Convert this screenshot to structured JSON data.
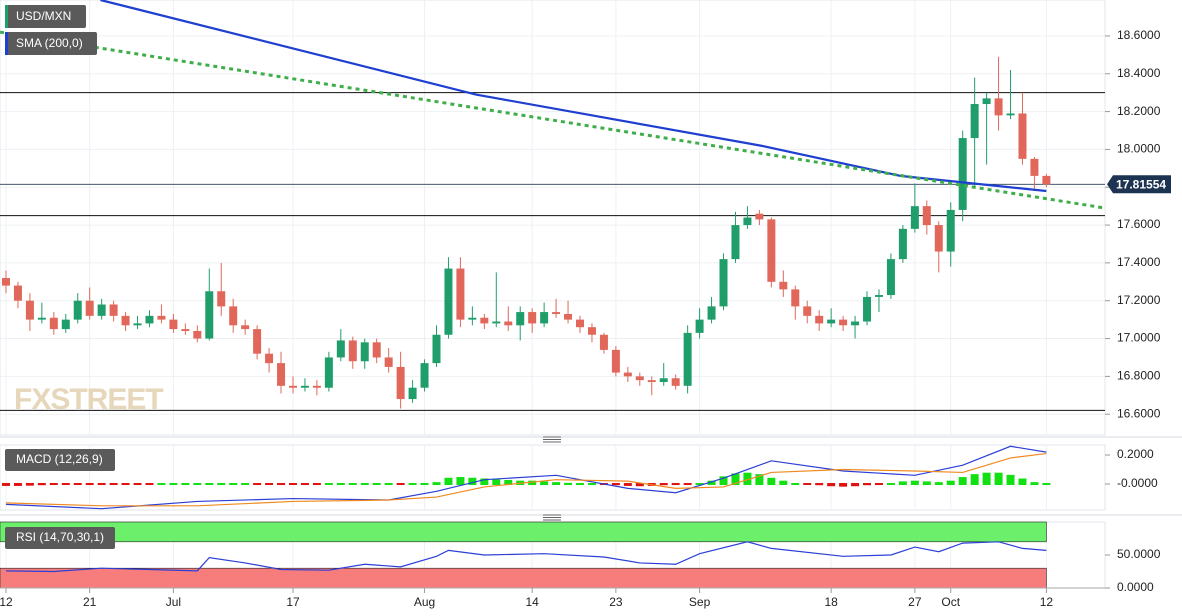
{
  "chart_data": [
    {
      "type": "candlestick",
      "title": "USD/MXN",
      "watermark": "FXSTREET",
      "xlim": [
        -0.5,
        91.9
      ],
      "ylim": [
        16.49,
        18.79
      ],
      "yticks": [
        {
          "value": 16.6,
          "label": "16.6000"
        },
        {
          "value": 16.8,
          "label": "16.8000"
        },
        {
          "value": 17.0,
          "label": "17.0000"
        },
        {
          "value": 17.2,
          "label": "17.2000"
        },
        {
          "value": 17.4,
          "label": "17.4000"
        },
        {
          "value": 17.6,
          "label": "17.6000"
        },
        {
          "value": 17.8,
          "label": "17.8000"
        },
        {
          "value": 18.0,
          "label": "18.0000"
        },
        {
          "value": 18.2,
          "label": "18.2000"
        },
        {
          "value": 18.4,
          "label": "18.4000"
        },
        {
          "value": 18.6,
          "label": "18.6000"
        }
      ],
      "grid": true,
      "up_color": "#1f9e6b",
      "down_color": "#e0675a",
      "candles": [
        [
          17.32,
          17.36,
          17.24,
          17.28
        ],
        [
          17.28,
          17.3,
          17.16,
          17.2
        ],
        [
          17.2,
          17.24,
          17.04,
          17.1
        ],
        [
          17.1,
          17.19,
          17.08,
          17.11
        ],
        [
          17.11,
          17.14,
          17.02,
          17.05
        ],
        [
          17.05,
          17.13,
          17.03,
          17.1
        ],
        [
          17.1,
          17.24,
          17.08,
          17.2
        ],
        [
          17.2,
          17.27,
          17.1,
          17.12
        ],
        [
          17.12,
          17.21,
          17.1,
          17.18
        ],
        [
          17.18,
          17.2,
          17.09,
          17.12
        ],
        [
          17.12,
          17.14,
          17.04,
          17.07
        ],
        [
          17.07,
          17.12,
          17.05,
          17.08
        ],
        [
          17.08,
          17.15,
          17.06,
          17.12
        ],
        [
          17.12,
          17.18,
          17.08,
          17.1
        ],
        [
          17.1,
          17.13,
          17.03,
          17.05
        ],
        [
          17.05,
          17.08,
          17.02,
          17.04
        ],
        [
          17.04,
          17.07,
          16.98,
          17.0
        ],
        [
          17.0,
          17.37,
          16.99,
          17.25
        ],
        [
          17.25,
          17.4,
          17.12,
          17.17
        ],
        [
          17.17,
          17.21,
          17.03,
          17.07
        ],
        [
          17.07,
          17.1,
          17.02,
          17.05
        ],
        [
          17.05,
          17.07,
          16.89,
          16.92
        ],
        [
          16.92,
          16.95,
          16.82,
          16.87
        ],
        [
          16.87,
          16.93,
          16.71,
          16.75
        ],
        [
          16.75,
          16.8,
          16.71,
          16.74
        ],
        [
          16.74,
          16.79,
          16.72,
          16.75
        ],
        [
          16.75,
          16.78,
          16.7,
          16.74
        ],
        [
          16.74,
          16.93,
          16.72,
          16.9
        ],
        [
          16.9,
          17.05,
          16.88,
          16.99
        ],
        [
          16.99,
          17.01,
          16.84,
          16.88
        ],
        [
          16.88,
          17.0,
          16.84,
          16.98
        ],
        [
          16.98,
          17.0,
          16.87,
          16.9
        ],
        [
          16.9,
          16.95,
          16.82,
          16.85
        ],
        [
          16.85,
          16.93,
          16.63,
          16.68
        ],
        [
          16.68,
          16.78,
          16.66,
          16.74
        ],
        [
          16.74,
          16.89,
          16.72,
          16.87
        ],
        [
          16.87,
          17.07,
          16.85,
          17.02
        ],
        [
          17.02,
          17.43,
          17.0,
          17.37
        ],
        [
          17.37,
          17.43,
          17.06,
          17.1
        ],
        [
          17.1,
          17.17,
          17.07,
          17.11
        ],
        [
          17.11,
          17.13,
          17.05,
          17.08
        ],
        [
          17.08,
          17.35,
          17.06,
          17.09
        ],
        [
          17.09,
          17.17,
          17.04,
          17.07
        ],
        [
          17.07,
          17.17,
          16.99,
          17.14
        ],
        [
          17.14,
          17.16,
          17.03,
          17.08
        ],
        [
          17.08,
          17.19,
          17.06,
          17.14
        ],
        [
          17.14,
          17.21,
          17.11,
          17.13
        ],
        [
          17.13,
          17.2,
          17.08,
          17.1
        ],
        [
          17.1,
          17.12,
          17.03,
          17.06
        ],
        [
          17.06,
          17.08,
          16.98,
          17.02
        ],
        [
          17.02,
          17.03,
          16.92,
          16.94
        ],
        [
          16.94,
          16.96,
          16.8,
          16.82
        ],
        [
          16.82,
          16.85,
          16.77,
          16.8
        ],
        [
          16.8,
          16.82,
          16.75,
          16.78
        ],
        [
          16.78,
          16.8,
          16.7,
          16.77
        ],
        [
          16.77,
          16.87,
          16.75,
          16.79
        ],
        [
          16.79,
          16.81,
          16.73,
          16.75
        ],
        [
          16.75,
          17.07,
          16.71,
          17.03
        ],
        [
          17.03,
          17.16,
          17.0,
          17.1
        ],
        [
          17.1,
          17.22,
          17.08,
          17.17
        ],
        [
          17.17,
          17.45,
          17.15,
          17.42
        ],
        [
          17.42,
          17.67,
          17.4,
          17.6
        ],
        [
          17.6,
          17.7,
          17.58,
          17.64
        ],
        [
          17.66,
          17.68,
          17.6,
          17.63
        ],
        [
          17.63,
          17.64,
          17.27,
          17.3
        ],
        [
          17.3,
          17.36,
          17.22,
          17.26
        ],
        [
          17.26,
          17.28,
          17.1,
          17.17
        ],
        [
          17.17,
          17.2,
          17.08,
          17.12
        ],
        [
          17.12,
          17.15,
          17.04,
          17.08
        ],
        [
          17.08,
          17.16,
          17.06,
          17.1
        ],
        [
          17.1,
          17.12,
          17.04,
          17.07
        ],
        [
          17.07,
          17.12,
          17.0,
          17.09
        ],
        [
          17.09,
          17.25,
          17.07,
          17.22
        ],
        [
          17.22,
          17.26,
          17.14,
          17.23
        ],
        [
          17.23,
          17.45,
          17.21,
          17.42
        ],
        [
          17.42,
          17.6,
          17.4,
          17.58
        ],
        [
          17.58,
          17.82,
          17.56,
          17.7
        ],
        [
          17.7,
          17.73,
          17.55,
          17.6
        ],
        [
          17.6,
          17.62,
          17.35,
          17.46
        ],
        [
          17.46,
          17.72,
          17.38,
          17.68
        ],
        [
          17.68,
          18.1,
          17.62,
          18.06
        ],
        [
          18.06,
          18.38,
          17.8,
          18.24
        ],
        [
          18.24,
          18.3,
          17.92,
          18.27
        ],
        [
          18.27,
          18.49,
          18.1,
          18.18
        ],
        [
          18.18,
          18.42,
          18.16,
          18.19
        ],
        [
          18.19,
          18.3,
          17.92,
          17.95
        ],
        [
          17.95,
          17.96,
          17.78,
          17.86
        ],
        [
          17.86,
          17.87,
          17.8,
          17.81554
        ]
      ],
      "series": [
        {
          "name": "SMA (200,0)",
          "color": "#1f3fd0",
          "style": "solid",
          "x": [
            7.9,
            39.3,
            63.1,
            74.8,
            87
          ],
          "values": [
            18.79,
            18.29,
            18.02,
            17.86,
            17.78
          ]
        },
        {
          "color": "#3fae4a",
          "style": "dotted",
          "x": [
            -0.5,
            91.9
          ],
          "values": [
            18.62,
            17.69
          ]
        }
      ],
      "levels": [
        18.3,
        17.65,
        16.62
      ],
      "price_tag": {
        "value": 17.81554,
        "label": "17.81554"
      }
    },
    {
      "type": "bar",
      "title": "MACD (12,26,9)",
      "xlim": [
        -0.5,
        91.9
      ],
      "ylim": [
        -0.179,
        0.269
      ],
      "yticks": [
        {
          "value": 0.2,
          "label": "0.2000"
        },
        {
          "value": 0,
          "label": "-0.0000"
        }
      ],
      "up_color": "#12e012",
      "down_color": "#e01010",
      "values": [
        -0.02,
        -0.02,
        -0.018,
        -0.015,
        -0.012,
        -0.01,
        -0.006,
        -0.004,
        -0.003,
        -0.002,
        -0.002,
        -0.002,
        -0.002,
        0.002,
        0.002,
        0.003,
        0.002,
        0.004,
        0.005,
        0.003,
        0.001,
        -0.002,
        -0.004,
        -0.005,
        -0.004,
        -0.003,
        -0.002,
        0.002,
        0.004,
        0.003,
        0.004,
        0.004,
        0.003,
        -0.002,
        0.002,
        0.008,
        0.02,
        0.05,
        0.055,
        0.05,
        0.045,
        0.04,
        0.035,
        0.03,
        0.03,
        0.025,
        0.02,
        0.015,
        0.01,
        0.004,
        -0.005,
        -0.015,
        -0.02,
        -0.022,
        -0.02,
        -0.015,
        -0.012,
        -0.003,
        0.01,
        0.03,
        0.06,
        0.08,
        0.085,
        0.075,
        0.05,
        0.03,
        0.01,
        -0.005,
        -0.015,
        -0.022,
        -0.025,
        -0.022,
        -0.015,
        -0.005,
        0.01,
        0.025,
        0.03,
        0.025,
        0.02,
        0.03,
        0.055,
        0.075,
        0.085,
        0.085,
        0.07,
        0.045,
        0.02,
        0.002
      ],
      "series": [
        {
          "color": "#2a3fd6",
          "x": [
            0,
            8,
            16,
            24,
            32,
            36,
            40,
            46,
            52,
            56,
            60,
            64,
            70,
            76,
            80,
            84,
            87
          ],
          "values": [
            -0.14,
            -0.17,
            -0.12,
            -0.1,
            -0.11,
            -0.05,
            0.03,
            0.06,
            -0.03,
            -0.06,
            0.04,
            0.16,
            0.09,
            0.06,
            0.13,
            0.26,
            0.22
          ]
        },
        {
          "color": "#f08a20",
          "x": [
            0,
            8,
            16,
            24,
            32,
            36,
            40,
            46,
            52,
            56,
            60,
            64,
            70,
            76,
            80,
            84,
            87
          ],
          "values": [
            -0.13,
            -0.15,
            -0.15,
            -0.12,
            -0.11,
            -0.09,
            -0.02,
            0.03,
            0.02,
            -0.03,
            -0.02,
            0.08,
            0.1,
            0.09,
            0.08,
            0.18,
            0.21
          ]
        }
      ]
    },
    {
      "type": "line",
      "title": "RSI (14,70,30,1)",
      "xlim": [
        -0.5,
        91.9
      ],
      "ylim": [
        0,
        100
      ],
      "yticks": [
        {
          "value": 50,
          "label": "50.0000"
        },
        {
          "value": 0,
          "label": "0.0000"
        }
      ],
      "xticks": [
        {
          "value": 0,
          "label": "12"
        },
        {
          "value": 7,
          "label": "21"
        },
        {
          "value": 14,
          "label": "Jul"
        },
        {
          "value": 24,
          "label": "17"
        },
        {
          "value": 35,
          "label": "Aug"
        },
        {
          "value": 44,
          "label": "14"
        },
        {
          "value": 51,
          "label": "23"
        },
        {
          "value": 58,
          "label": "Sep"
        },
        {
          "value": 69,
          "label": "18"
        },
        {
          "value": 76,
          "label": "27"
        },
        {
          "value": 79,
          "label": "Oct"
        },
        {
          "value": 87,
          "label": "12"
        }
      ],
      "bands": [
        {
          "from": 70,
          "to": 100,
          "color": "#6cf06c"
        },
        {
          "from": 0,
          "to": 30,
          "color": "#f77d7d"
        }
      ],
      "series": [
        {
          "color": "#2a3fd6",
          "x": [
            0,
            4,
            8,
            12,
            16,
            17,
            20,
            23,
            27,
            30,
            33,
            36,
            37,
            40,
            45,
            50,
            53,
            56,
            58,
            62,
            64,
            70,
            74,
            76,
            78,
            80,
            83,
            85,
            87
          ],
          "values": [
            26,
            25,
            30,
            28,
            26,
            46,
            38,
            28,
            27,
            36,
            32,
            48,
            57,
            50,
            52,
            47,
            38,
            36,
            52,
            70,
            60,
            48,
            50,
            62,
            55,
            68,
            70,
            60,
            57
          ]
        }
      ]
    }
  ]
}
